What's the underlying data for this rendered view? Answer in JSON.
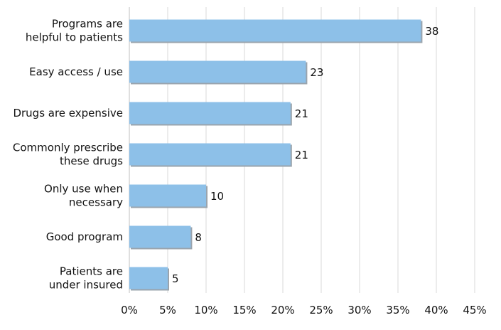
{
  "chart_data": {
    "type": "bar",
    "orientation": "horizontal",
    "categories": [
      [
        "Programs are",
        "helpful to patients"
      ],
      [
        "Easy access / use"
      ],
      [
        "Drugs are expensive"
      ],
      [
        "Commonly prescribe",
        "these drugs"
      ],
      [
        "Only use when",
        "necessary"
      ],
      [
        "Good program"
      ],
      [
        "Patients are",
        "under insured"
      ]
    ],
    "values": [
      38,
      23,
      21,
      21,
      10,
      8,
      5
    ],
    "value_labels": [
      "38",
      "23",
      "21",
      "21",
      "10",
      "8",
      "5"
    ],
    "xticks": [
      "0%",
      "5%",
      "10%",
      "15%",
      "20%",
      "25%",
      "30%",
      "35%",
      "40%",
      "45%"
    ],
    "xlim": [
      0,
      45
    ],
    "grid": true,
    "bar_color": "#8dc0e8",
    "bar_shadow_color": "#9aa4ad",
    "grid_color": "#d9d9d9"
  }
}
